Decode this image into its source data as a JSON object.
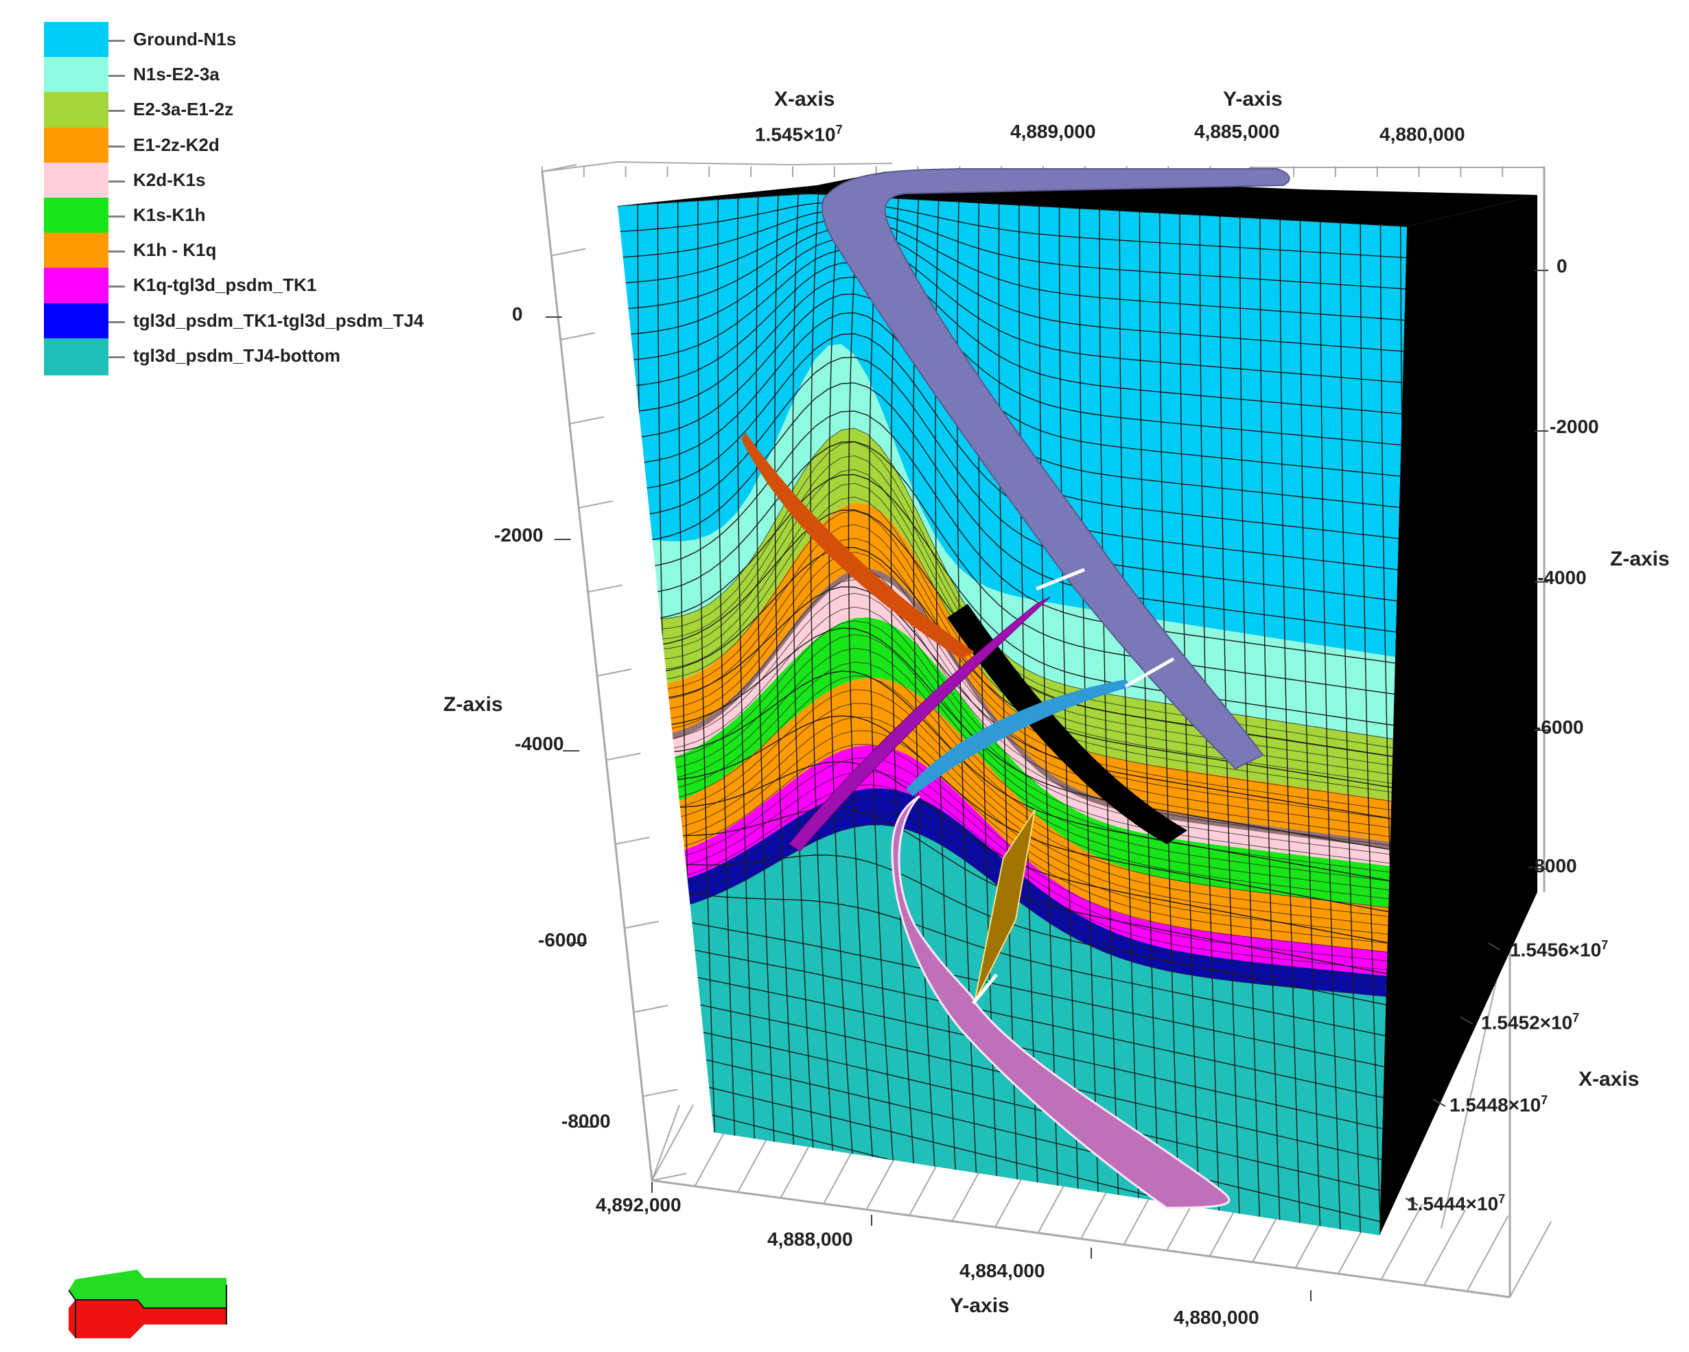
{
  "legend": {
    "items": [
      {
        "label": "Ground-N1s",
        "color": "#00ccf5"
      },
      {
        "label": "N1s-E2-3a",
        "color": "#8ffbe0"
      },
      {
        "label": "E2-3a-E1-2z",
        "color": "#a6d63a"
      },
      {
        "label": "E1-2z-K2d",
        "color": "#ff9a00"
      },
      {
        "label": "K2d-K1s",
        "color": "#ffd0dc"
      },
      {
        "label": "K1s-K1h",
        "color": "#19e619"
      },
      {
        "label": "K1h - K1q",
        "color": "#ff9a00"
      },
      {
        "label": "K1q-tgl3d_psdm_TK1",
        "color": "#ff00ff"
      },
      {
        "label": "tgl3d_psdm_TK1-tgl3d_psdm_TJ4",
        "color": "#0000ff"
      },
      {
        "label": "tgl3d_psdm_TJ4-bottom",
        "color": "#20c0b8"
      }
    ]
  },
  "axes": {
    "top_x_title": "X-axis",
    "top_x_ticks": [
      {
        "mantissa": "1.545×10",
        "exp": "7"
      }
    ],
    "top_y_title": "Y-axis",
    "top_y_ticks": [
      "4,889,000",
      "4,885,000",
      "4,880,000"
    ],
    "left_z_title": "Z-axis",
    "left_z_ticks": [
      "0",
      "-2000",
      "-4000",
      "-6000",
      "-8000"
    ],
    "right_z_title": "Z-axis",
    "right_z_ticks": [
      "0",
      "-2000",
      "-4000",
      "-6000",
      "-8000"
    ],
    "right_x_title": "X-axis",
    "right_x_ticks": [
      {
        "mantissa": "1.5456×10",
        "exp": "7"
      },
      {
        "mantissa": "1.5452×10",
        "exp": "7"
      },
      {
        "mantissa": "1.5448×10",
        "exp": "7"
      },
      {
        "mantissa": "1.5444×10",
        "exp": "7"
      }
    ],
    "bottom_y_title": "Y-axis",
    "bottom_y_ticks": [
      "4,892,000",
      "4,888,000",
      "4,884,000",
      "4,880,000"
    ]
  },
  "faults": [
    {
      "name": "fault-upper-purple",
      "color": "#7b78b8"
    },
    {
      "name": "fault-orange",
      "color": "#d4500a"
    },
    {
      "name": "fault-magenta",
      "color": "#a010b0"
    },
    {
      "name": "fault-blue",
      "color": "#2f9ad6"
    },
    {
      "name": "fault-lower-pink",
      "color": "#c070b8"
    },
    {
      "name": "fault-gold",
      "color": "#a07400"
    }
  ],
  "colors": {
    "side_face": "#000000",
    "grid_line": "#1a1a1a",
    "gridbox": "#a8a8a8"
  },
  "compass": {
    "icon": "orientation-arrow-icon",
    "top": "#22dd22",
    "bottom": "#ee1111"
  }
}
